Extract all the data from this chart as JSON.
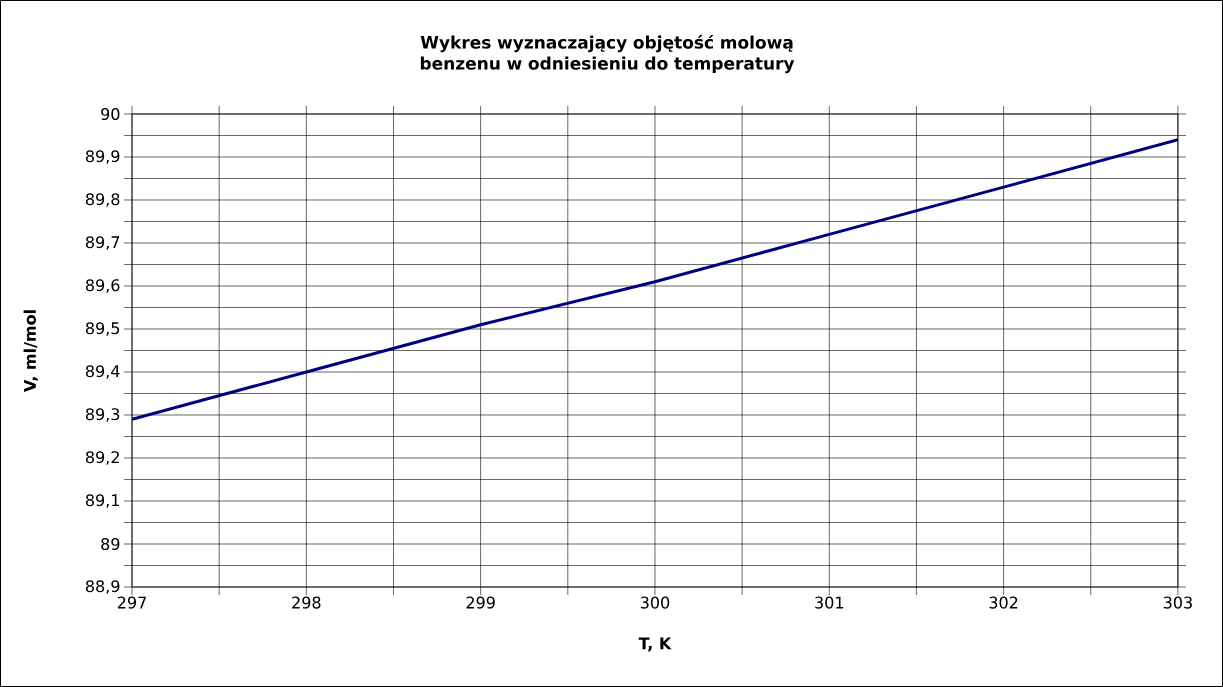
{
  "chart_data": {
    "type": "line",
    "title": "Wykres wyznaczający objętość molową benzenu w odniesieniu do temperatury",
    "xlabel": "T, K",
    "ylabel": "V, ml/mol",
    "x": [
      297,
      298,
      299,
      300,
      301,
      302,
      303
    ],
    "series": [
      {
        "color": "#000080",
        "values": [
          89.29,
          89.4,
          89.51,
          89.61,
          89.72,
          89.83,
          89.94
        ]
      }
    ],
    "xlim": [
      297,
      303
    ],
    "ylim": [
      88.9,
      90
    ],
    "xticks": [
      297,
      {
        "value": 297.5,
        "label": null
      },
      298,
      {
        "value": 298.5,
        "label": null
      },
      299,
      {
        "value": 299.5,
        "label": null
      },
      300,
      {
        "value": 300.5,
        "label": null
      },
      301,
      {
        "value": 301.5,
        "label": null
      },
      302,
      {
        "value": 302.5,
        "label": null
      },
      303
    ],
    "yticks": [
      {
        "value": 88.9,
        "label": "88,9"
      },
      {
        "value": 88.95,
        "label": null
      },
      89,
      {
        "value": 89.05,
        "label": null
      },
      {
        "value": 89.1,
        "label": "89,1"
      },
      {
        "value": 89.15,
        "label": null
      },
      {
        "value": 89.2,
        "label": "89,2"
      },
      {
        "value": 89.25,
        "label": null
      },
      {
        "value": 89.3,
        "label": "89,3"
      },
      {
        "value": 89.35,
        "label": null
      },
      {
        "value": 89.4,
        "label": "89,4"
      },
      {
        "value": 89.45,
        "label": null
      },
      {
        "value": 89.5,
        "label": "89,5"
      },
      {
        "value": 89.55,
        "label": null
      },
      {
        "value": 89.6,
        "label": "89,6"
      },
      {
        "value": 89.65,
        "label": null
      },
      {
        "value": 89.7,
        "label": "89,7"
      },
      {
        "value": 89.75,
        "label": null
      },
      {
        "value": 89.8,
        "label": "89,8"
      },
      {
        "value": 89.85,
        "label": null
      },
      {
        "value": 89.9,
        "label": "89,9"
      },
      {
        "value": 89.95,
        "label": null
      },
      90
    ],
    "grid": true
  }
}
